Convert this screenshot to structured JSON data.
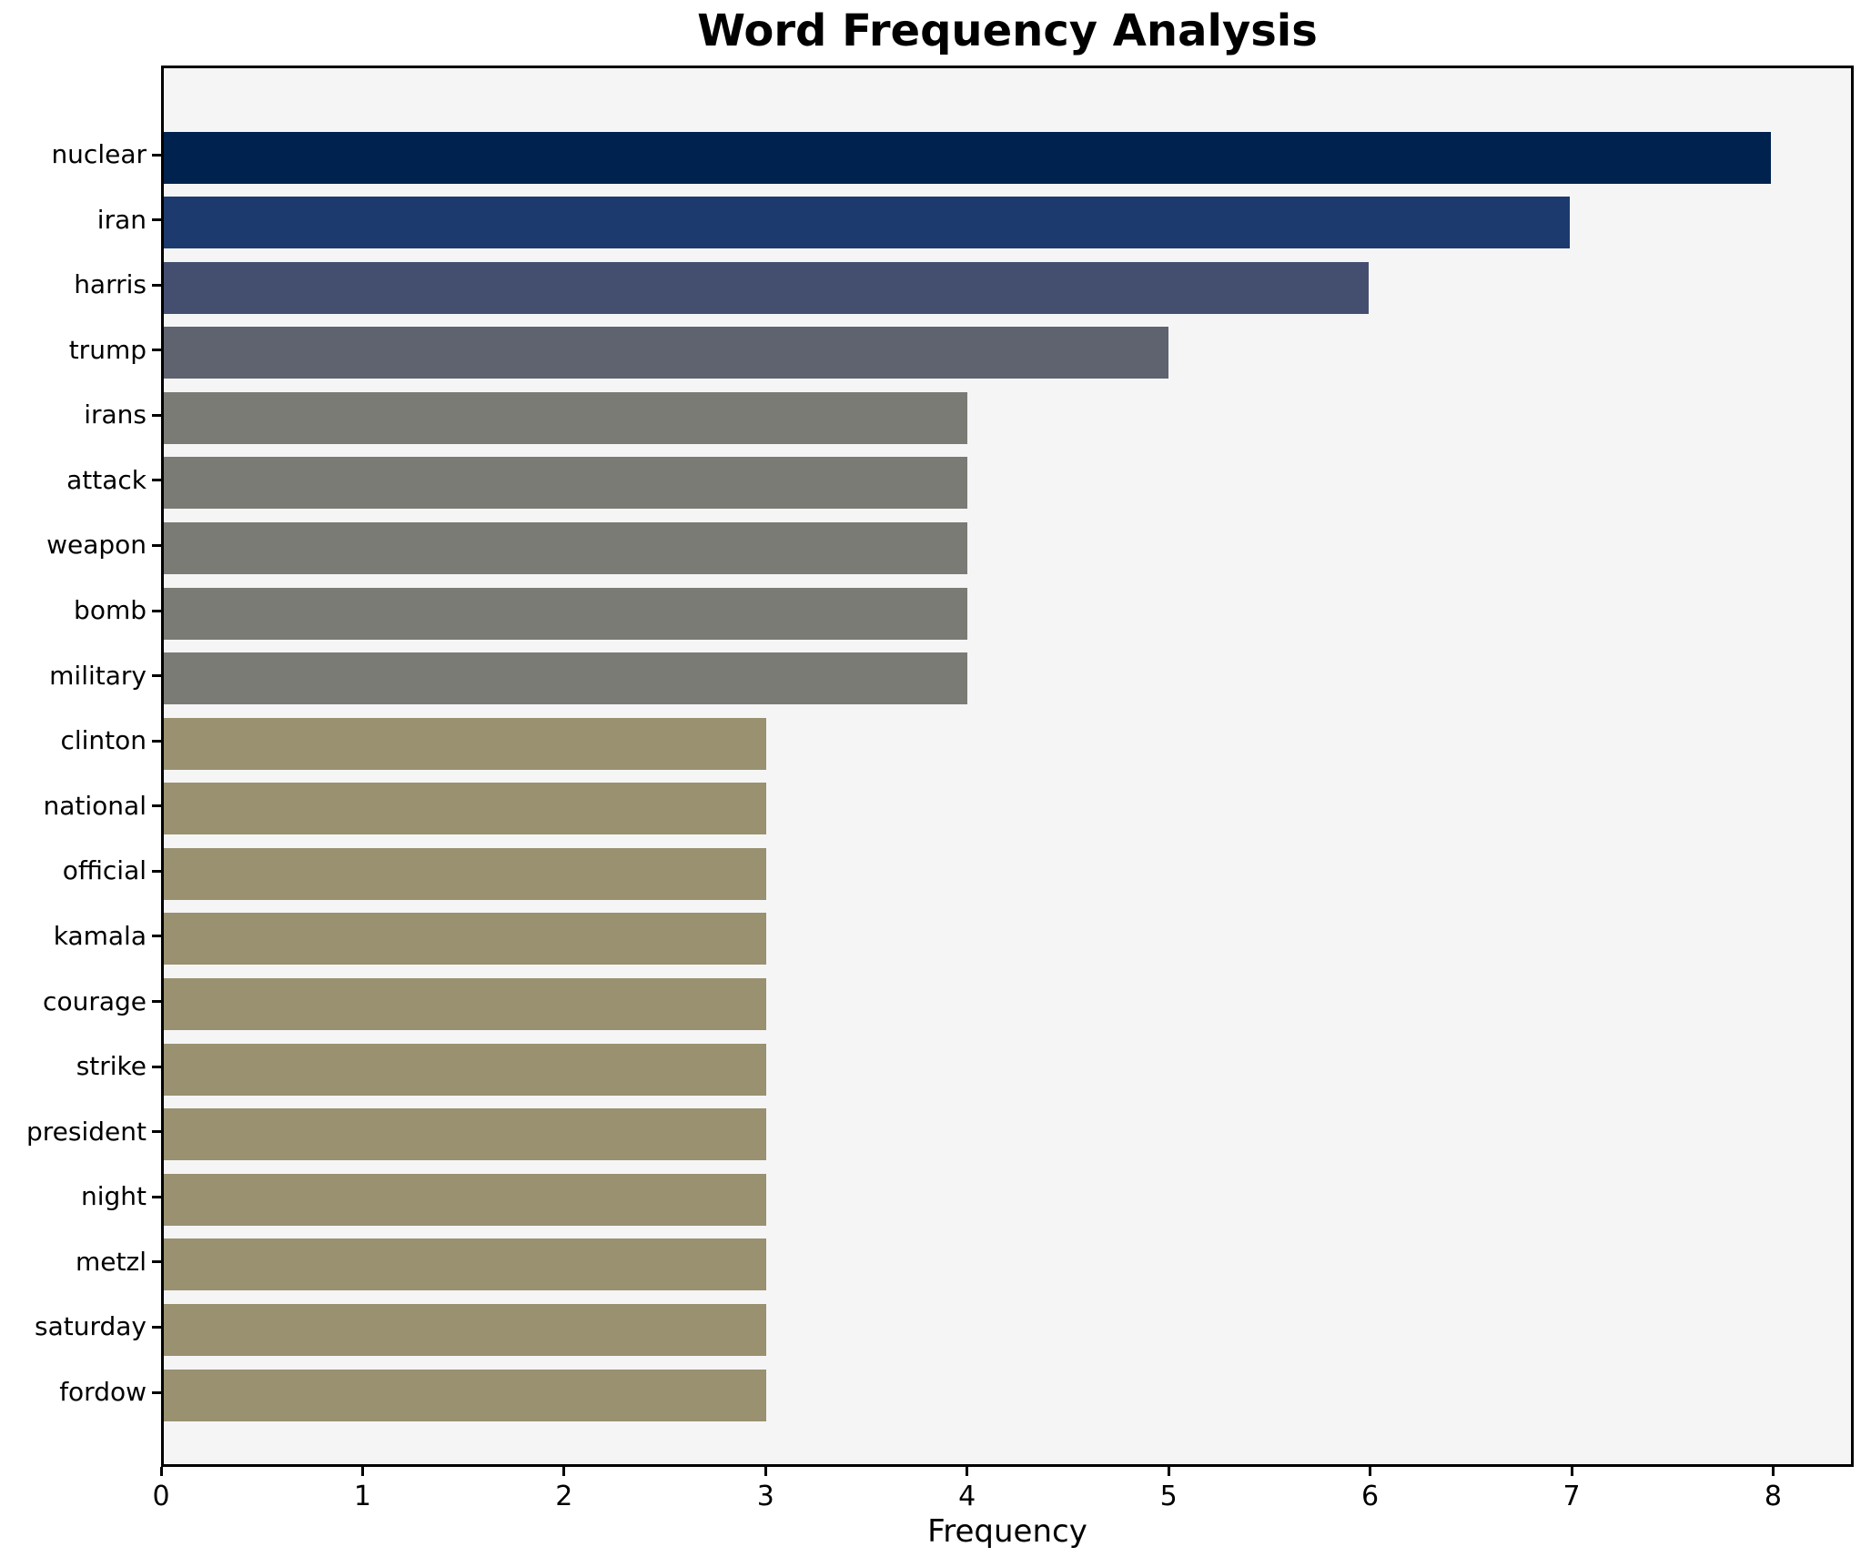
{
  "chart_data": {
    "type": "bar",
    "orientation": "horizontal",
    "title": "Word Frequency Analysis",
    "xlabel": "Frequency",
    "ylabel": "",
    "xlim": [
      0,
      8.4
    ],
    "xticks": [
      0,
      1,
      2,
      3,
      4,
      5,
      6,
      7,
      8
    ],
    "grid": false,
    "legend": "none",
    "figure_bg": "#ffffff",
    "plot_bg": "#f5f5f6",
    "frame_color": "#000000",
    "categories": [
      "nuclear",
      "iran",
      "harris",
      "trump",
      "irans",
      "attack",
      "weapon",
      "bomb",
      "military",
      "clinton",
      "national",
      "official",
      "kamala",
      "courage",
      "strike",
      "president",
      "night",
      "metzl",
      "saturday",
      "fordow"
    ],
    "values": [
      8,
      7,
      6,
      5,
      4,
      4,
      4,
      4,
      4,
      3,
      3,
      3,
      3,
      3,
      3,
      3,
      3,
      3,
      3,
      3
    ],
    "bar_colors": [
      "#00224e",
      "#1c3a6e",
      "#444f70",
      "#5f6370",
      "#7b7b76",
      "#7b7b76",
      "#7b7b76",
      "#7b7b76",
      "#7b7b76",
      "#999170",
      "#999170",
      "#999170",
      "#999170",
      "#999170",
      "#999170",
      "#999170",
      "#999170",
      "#999170",
      "#999170",
      "#999170"
    ]
  }
}
